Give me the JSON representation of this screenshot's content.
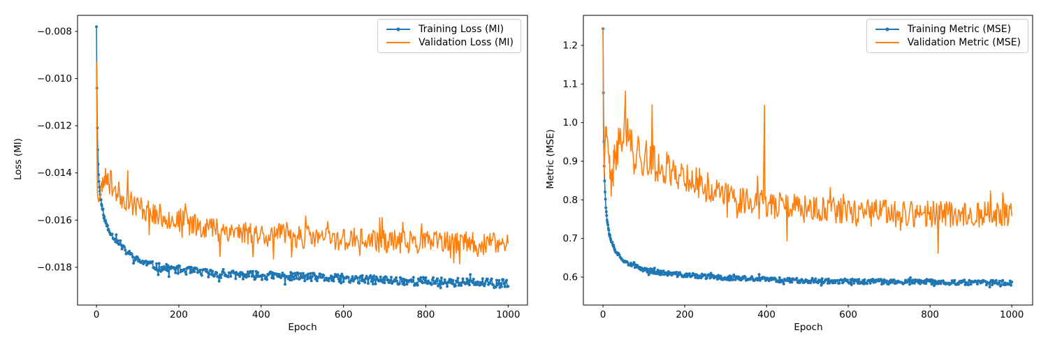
{
  "chart_data": [
    {
      "type": "line",
      "title": "",
      "xlabel": "Epoch",
      "ylabel": "Loss (MI)",
      "xlim": [
        -46,
        1047
      ],
      "ylim": [
        -0.0196,
        -0.00732
      ],
      "xticks": [
        0,
        200,
        400,
        600,
        800,
        1000
      ],
      "xtick_labels": [
        "0",
        "200",
        "400",
        "600",
        "800",
        "1000"
      ],
      "yticks": [
        -0.008,
        -0.01,
        -0.012,
        -0.014,
        -0.016,
        -0.018
      ],
      "ytick_labels": [
        "−0.008",
        "−0.010",
        "−0.012",
        "−0.014",
        "−0.016",
        "−0.018"
      ],
      "grid": false,
      "legend_position": "upper right",
      "series": [
        {
          "name": "Training Loss (MI)",
          "color": "#1f77b4",
          "marker": true,
          "seed": 11,
          "trend": [
            [
              0,
              -0.0078
            ],
            [
              1,
              -0.0104
            ],
            [
              2,
              -0.0121
            ],
            [
              3,
              -0.013
            ],
            [
              4,
              -0.0136
            ],
            [
              5,
              -0.0141
            ],
            [
              7,
              -0.0146
            ],
            [
              10,
              -0.0151
            ],
            [
              15,
              -0.0156
            ],
            [
              20,
              -0.016
            ],
            [
              30,
              -0.0164
            ],
            [
              40,
              -0.0167
            ],
            [
              50,
              -0.0169
            ],
            [
              70,
              -0.0173
            ],
            [
              100,
              -0.0177
            ],
            [
              150,
              -0.018
            ],
            [
              200,
              -0.0181
            ],
            [
              300,
              -0.0183
            ],
            [
              400,
              -0.01835
            ],
            [
              500,
              -0.0184
            ],
            [
              600,
              -0.0185
            ],
            [
              700,
              -0.01855
            ],
            [
              800,
              -0.0186
            ],
            [
              900,
              -0.01865
            ],
            [
              1000,
              -0.0187
            ]
          ],
          "noise": [
            [
              0,
              0
            ],
            [
              5,
              4e-05
            ],
            [
              20,
              9e-05
            ],
            [
              60,
              0.00013
            ],
            [
              150,
              0.00017
            ],
            [
              1000,
              0.00019
            ]
          ],
          "spikes": []
        },
        {
          "name": "Validation Loss (MI)",
          "color": "#ff7f0e",
          "marker": false,
          "seed": 23,
          "trend": [
            [
              0,
              -0.0093
            ],
            [
              2,
              -0.0148
            ],
            [
              5,
              -0.0151
            ],
            [
              10,
              -0.0147
            ],
            [
              20,
              -0.0142
            ],
            [
              30,
              -0.0141
            ],
            [
              40,
              -0.0146
            ],
            [
              60,
              -0.015
            ],
            [
              80,
              -0.0152
            ],
            [
              100,
              -0.0154
            ],
            [
              150,
              -0.0158
            ],
            [
              200,
              -0.016
            ],
            [
              250,
              -0.0162
            ],
            [
              300,
              -0.0164
            ],
            [
              400,
              -0.0166
            ],
            [
              500,
              -0.0167
            ],
            [
              600,
              -0.0168
            ],
            [
              700,
              -0.0169
            ],
            [
              800,
              -0.01693
            ],
            [
              900,
              -0.017
            ],
            [
              1000,
              -0.017
            ]
          ],
          "noise": [
            [
              0,
              0
            ],
            [
              3,
              0.0002
            ],
            [
              15,
              0.00035
            ],
            [
              40,
              0.0005
            ],
            [
              200,
              0.00052
            ],
            [
              1000,
              0.00048
            ]
          ],
          "spikes": [
            [
              76,
              -0.0139
            ],
            [
              300,
              -0.01755
            ],
            [
              430,
              -0.01765
            ],
            [
              640,
              -0.0175
            ],
            [
              860,
              -0.0176
            ]
          ]
        }
      ]
    },
    {
      "type": "line",
      "title": "",
      "xlabel": "Epoch",
      "ylabel": "Metric (MSE)",
      "xlim": [
        -48,
        1051
      ],
      "ylim": [
        0.5277,
        1.2777
      ],
      "xticks": [
        0,
        200,
        400,
        600,
        800,
        1000
      ],
      "xtick_labels": [
        "0",
        "200",
        "400",
        "600",
        "800",
        "1000"
      ],
      "yticks": [
        1.2,
        1.1,
        1.0,
        0.9,
        0.8,
        0.7,
        0.6
      ],
      "ytick_labels": [
        "1.2",
        "1.1",
        "1.0",
        "0.9",
        "0.8",
        "0.7",
        "0.6"
      ],
      "grid": false,
      "legend_position": "upper right",
      "series": [
        {
          "name": "Training Metric (MSE)",
          "color": "#1f77b4",
          "marker": true,
          "seed": 37,
          "trend": [
            [
              0,
              1.243
            ],
            [
              1,
              1.078
            ],
            [
              2,
              0.952
            ],
            [
              3,
              0.888
            ],
            [
              4,
              0.85
            ],
            [
              5,
              0.82
            ],
            [
              7,
              0.78
            ],
            [
              10,
              0.75
            ],
            [
              15,
              0.715
            ],
            [
              20,
              0.695
            ],
            [
              30,
              0.67
            ],
            [
              40,
              0.655
            ],
            [
              50,
              0.645
            ],
            [
              70,
              0.63
            ],
            [
              100,
              0.62
            ],
            [
              150,
              0.61
            ],
            [
              200,
              0.605
            ],
            [
              300,
              0.598
            ],
            [
              400,
              0.594
            ],
            [
              500,
              0.591
            ],
            [
              600,
              0.589
            ],
            [
              700,
              0.588
            ],
            [
              800,
              0.587
            ],
            [
              900,
              0.586
            ],
            [
              1000,
              0.585
            ]
          ],
          "noise": [
            [
              0,
              0
            ],
            [
              5,
              0.003
            ],
            [
              30,
              0.005
            ],
            [
              100,
              0.006
            ],
            [
              1000,
              0.0065
            ]
          ],
          "spikes": []
        },
        {
          "name": "Validation Metric (MSE)",
          "color": "#ff7f0e",
          "marker": false,
          "seed": 41,
          "trend": [
            [
              0,
              1.245
            ],
            [
              1,
              0.95
            ],
            [
              3,
              0.88
            ],
            [
              6,
              0.98
            ],
            [
              10,
              0.94
            ],
            [
              15,
              0.9
            ],
            [
              20,
              0.83
            ],
            [
              25,
              0.88
            ],
            [
              35,
              0.93
            ],
            [
              45,
              0.97
            ],
            [
              55,
              1.0
            ],
            [
              65,
              0.95
            ],
            [
              80,
              0.92
            ],
            [
              100,
              0.91
            ],
            [
              130,
              0.89
            ],
            [
              160,
              0.88
            ],
            [
              200,
              0.86
            ],
            [
              250,
              0.835
            ],
            [
              300,
              0.81
            ],
            [
              350,
              0.8
            ],
            [
              400,
              0.79
            ],
            [
              450,
              0.782
            ],
            [
              500,
              0.775
            ],
            [
              600,
              0.768
            ],
            [
              700,
              0.765
            ],
            [
              800,
              0.763
            ],
            [
              900,
              0.762
            ],
            [
              1000,
              0.762
            ]
          ],
          "noise": [
            [
              0,
              0
            ],
            [
              3,
              0.02
            ],
            [
              10,
              0.035
            ],
            [
              30,
              0.05
            ],
            [
              100,
              0.05
            ],
            [
              200,
              0.042
            ],
            [
              400,
              0.036
            ],
            [
              1000,
              0.033
            ]
          ],
          "spikes": [
            [
              55,
              1.082
            ],
            [
              120,
              1.046
            ],
            [
              395,
              1.045
            ],
            [
              450,
              0.694
            ],
            [
              820,
              0.662
            ]
          ]
        }
      ]
    }
  ]
}
